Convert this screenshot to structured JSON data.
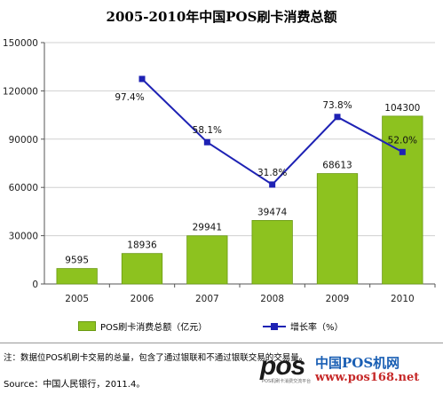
{
  "chart_data": {
    "type": "bar",
    "title": "2005-2010年中国POS刷卡消费总额",
    "categories": [
      "2005",
      "2006",
      "2007",
      "2008",
      "2009",
      "2010"
    ],
    "ylim": [
      0,
      150000
    ],
    "yticks": [
      "0",
      "30000",
      "60000",
      "90000",
      "120000",
      "150000"
    ],
    "grid": true,
    "legend_position": "bottom",
    "series": [
      {
        "name": "POS刷卡消费总额（亿元）",
        "type": "bar",
        "color": "#8dc21f",
        "values": [
          9595,
          18936,
          29941,
          39474,
          68613,
          104300
        ],
        "labels": [
          "9595",
          "18936",
          "29941",
          "39474",
          "68613",
          "104300"
        ]
      },
      {
        "name": "增长率（%）",
        "type": "line",
        "color": "#1e22b4",
        "values": [
          null,
          97.4,
          58.1,
          31.8,
          73.8,
          52.0
        ],
        "labels": [
          "",
          "97.4%",
          "58.1%",
          "31.8%",
          "73.8%",
          "52.0%"
        ]
      }
    ]
  },
  "footer": {
    "note": "注：数据位POS机刷卡交易的总量，包含了通过银联和不通过银联交易的交易量。",
    "source": "Source：中国人民银行，2011.4。"
  },
  "watermark": {
    "logo": "pos",
    "tagline": "POS机刷卡消费交流平台",
    "name": "中国POS机网",
    "url": "www.pos168.net"
  }
}
